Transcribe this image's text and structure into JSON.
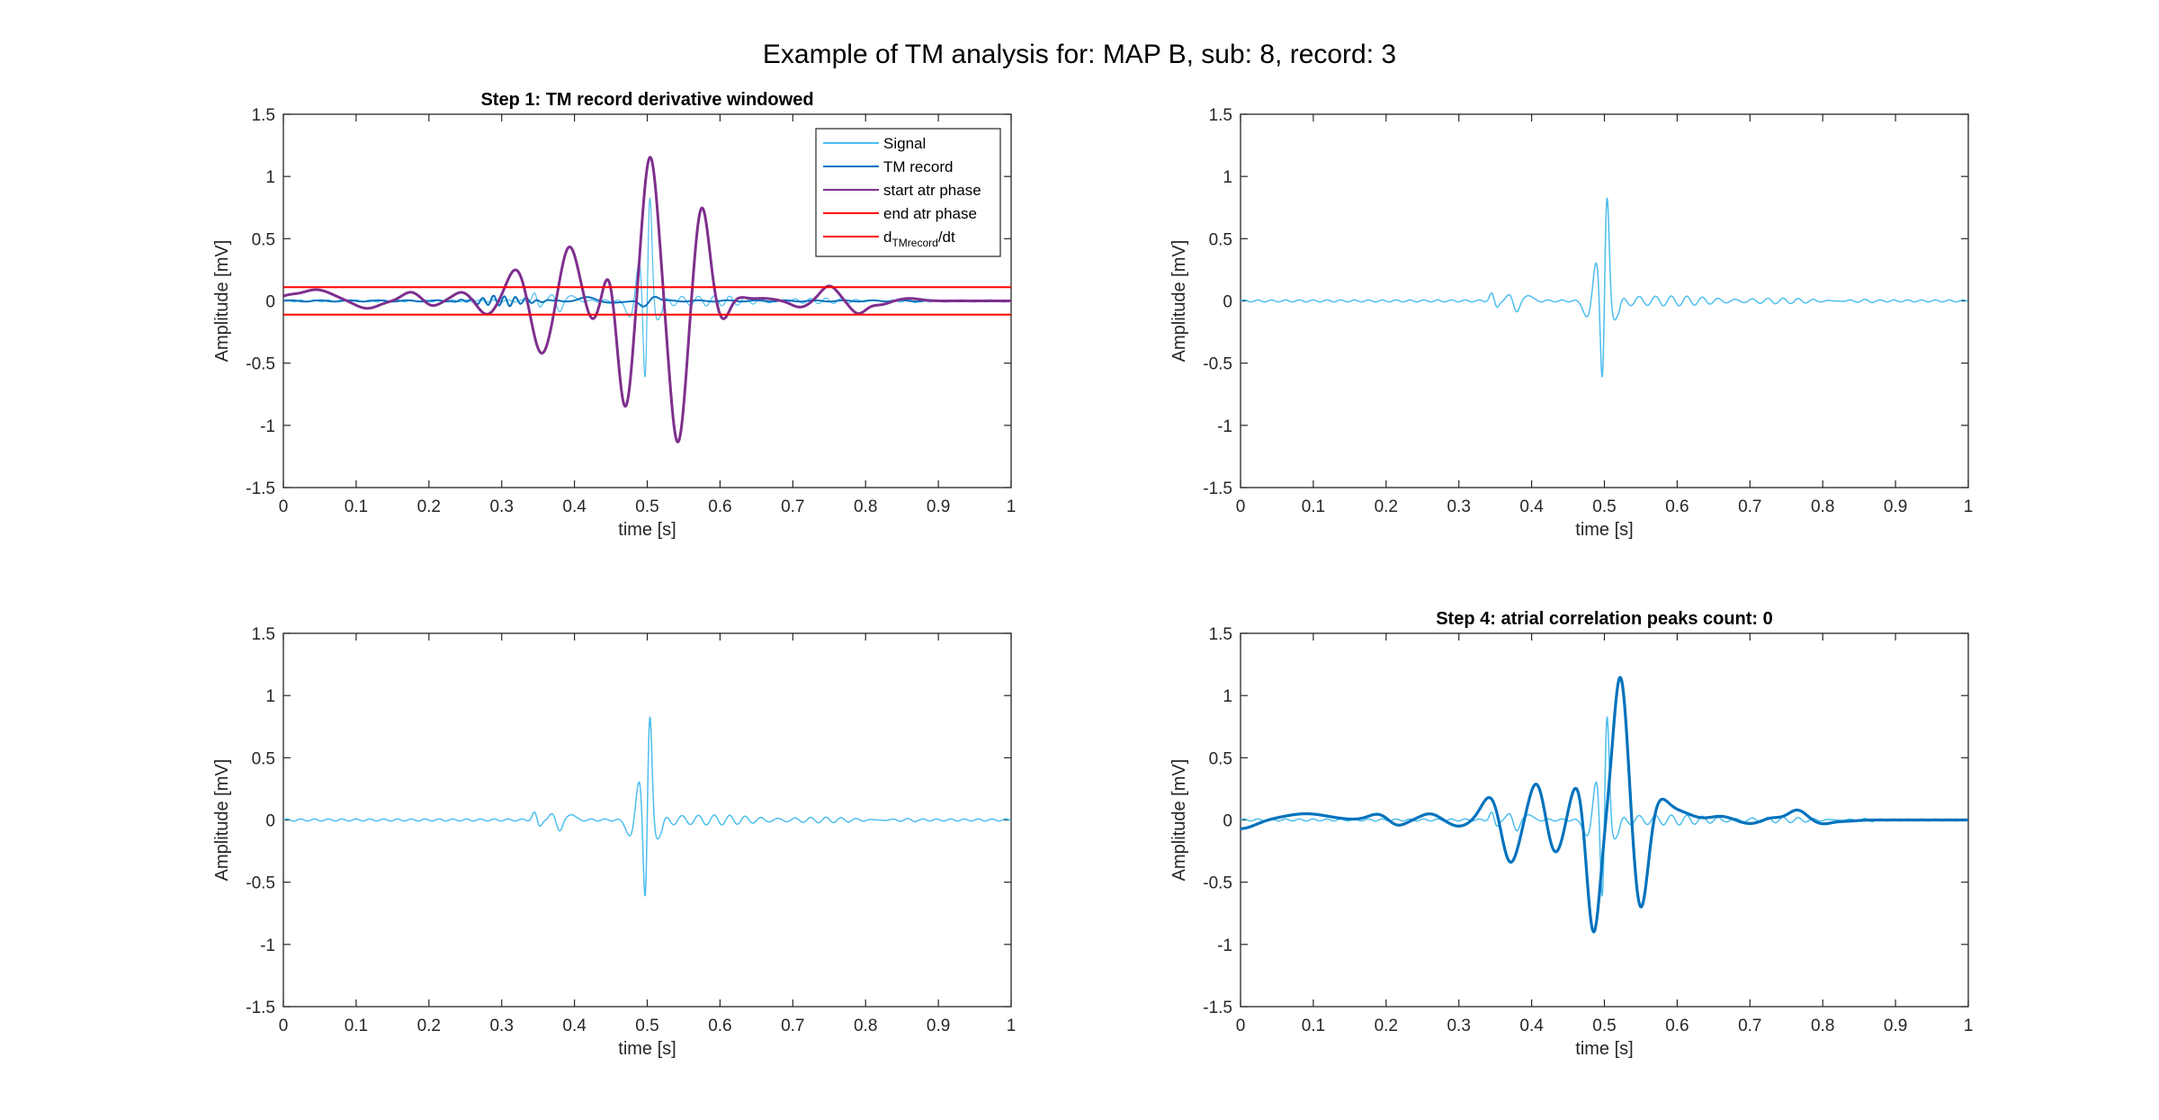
{
  "figure": {
    "suptitle": "Example of TM analysis for: MAP B, sub: 8, record: 3"
  },
  "colors": {
    "signal": "#4dbeee",
    "tm_record": "#0072bd",
    "start_atr": "#7e2f8e",
    "end_atr": "#ff0000",
    "deriv": "#ff0000"
  },
  "chart_data": [
    {
      "type": "line",
      "title": "Step 1: TM record derivative windowed",
      "xlabel": "time [s]",
      "ylabel": "Amplitude [mV]",
      "xlim": [
        0,
        1
      ],
      "ylim": [
        -1.5,
        1.5
      ],
      "xticks": [
        "0",
        "0.1",
        "0.2",
        "0.3",
        "0.4",
        "0.5",
        "0.6",
        "0.7",
        "0.8",
        "0.9",
        "1"
      ],
      "yticks": [
        "-1.5",
        "-1",
        "-0.5",
        "0",
        "0.5",
        "1",
        "1.5"
      ],
      "grid": false,
      "legend": {
        "placement": "top-right",
        "entries": [
          {
            "name": "Signal",
            "color": "#4dbeee"
          },
          {
            "name": "TM record",
            "color": "#0072bd"
          },
          {
            "name": "start atr phase",
            "color": "#7e2f8e"
          },
          {
            "name": "end atr phase",
            "color": "#ff0000"
          },
          {
            "name": "d",
            "sub": "TMrecord",
            "suffix": "/dt",
            "color": "#ff0000"
          }
        ]
      },
      "series": [
        {
          "name": "Signal",
          "color": "#4dbeee",
          "width": 1.2,
          "kind": "signal"
        },
        {
          "name": "TM record",
          "color": "#0072bd",
          "width": 2,
          "kind": "tmflat"
        },
        {
          "name": "start atr phase",
          "color": "#7e2f8e",
          "width": 3,
          "kind": "purple"
        },
        {
          "name": "end atr phase",
          "color": "#ff0000",
          "width": 2,
          "kind": "hline",
          "y": 0.11
        },
        {
          "name": "d TMrecord/dt",
          "color": "#ff0000",
          "width": 2,
          "kind": "hline",
          "y": -0.11
        }
      ]
    },
    {
      "type": "line",
      "title": "",
      "xlabel": "time [s]",
      "ylabel": "Amplitude [mV]",
      "xlim": [
        0,
        1
      ],
      "ylim": [
        -1.5,
        1.5
      ],
      "xticks": [
        "0",
        "0.1",
        "0.2",
        "0.3",
        "0.4",
        "0.5",
        "0.6",
        "0.7",
        "0.8",
        "0.9",
        "1"
      ],
      "yticks": [
        "-1.5",
        "-1",
        "-0.5",
        "0",
        "0.5",
        "1",
        "1.5"
      ],
      "grid": false,
      "series": [
        {
          "color": "#4dbeee",
          "width": 1.5,
          "kind": "signal"
        }
      ]
    },
    {
      "type": "line",
      "title": "",
      "xlabel": "time [s]",
      "ylabel": "Amplitude [mV]",
      "xlim": [
        0,
        1
      ],
      "ylim": [
        -1.5,
        1.5
      ],
      "xticks": [
        "0",
        "0.1",
        "0.2",
        "0.3",
        "0.4",
        "0.5",
        "0.6",
        "0.7",
        "0.8",
        "0.9",
        "1"
      ],
      "yticks": [
        "-1.5",
        "-1",
        "-0.5",
        "0",
        "0.5",
        "1",
        "1.5"
      ],
      "grid": false,
      "series": [
        {
          "color": "#4dbeee",
          "width": 1.5,
          "kind": "signal"
        }
      ]
    },
    {
      "type": "line",
      "title": "Step 4: atrial correlation peaks count: 0",
      "xlabel": "time [s]",
      "ylabel": "Amplitude [mV]",
      "xlim": [
        0,
        1
      ],
      "ylim": [
        -1.5,
        1.5
      ],
      "xticks": [
        "0",
        "0.1",
        "0.2",
        "0.3",
        "0.4",
        "0.5",
        "0.6",
        "0.7",
        "0.8",
        "0.9",
        "1"
      ],
      "yticks": [
        "-1.5",
        "-1",
        "-0.5",
        "0",
        "0.5",
        "1",
        "1.5"
      ],
      "grid": false,
      "series": [
        {
          "color": "#4dbeee",
          "width": 1.5,
          "kind": "signal"
        },
        {
          "color": "#0072bd",
          "width": 3.2,
          "kind": "tm"
        }
      ]
    }
  ]
}
